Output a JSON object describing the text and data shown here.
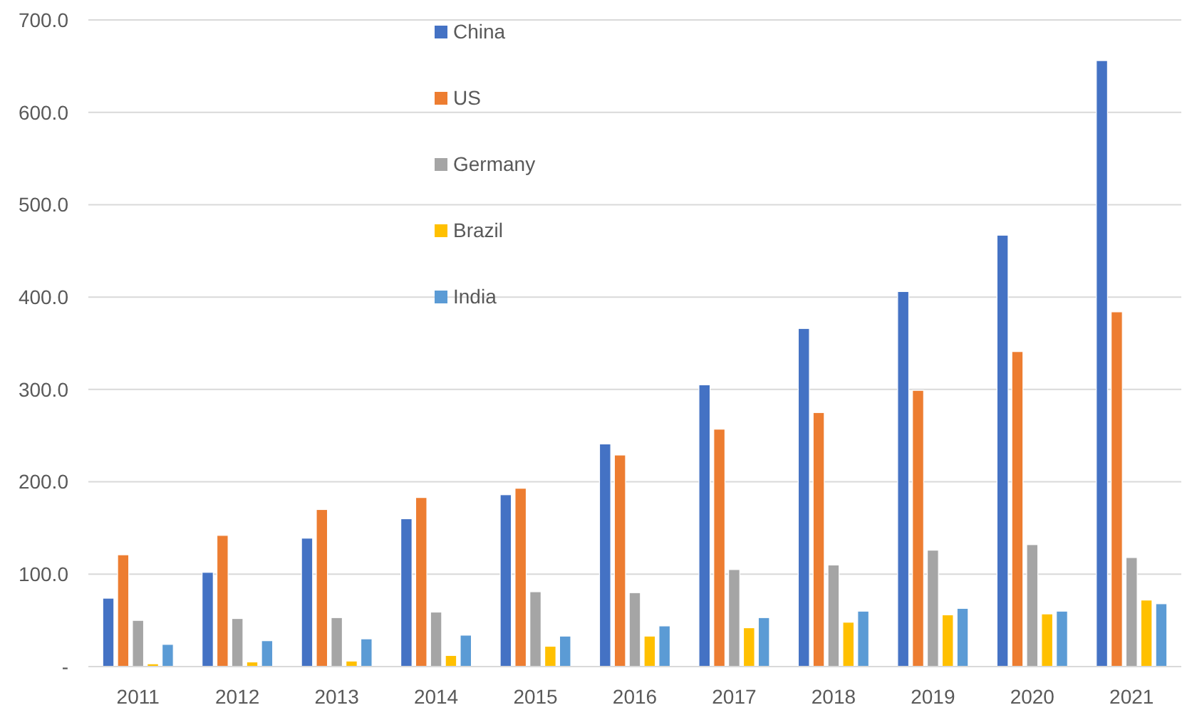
{
  "chart_data": {
    "type": "bar",
    "categories": [
      "2011",
      "2012",
      "2013",
      "2014",
      "2015",
      "2016",
      "2017",
      "2018",
      "2019",
      "2020",
      "2021"
    ],
    "series": [
      {
        "name": "China",
        "color": "#4472c4",
        "values": [
          74,
          102,
          139,
          160,
          186,
          241,
          305,
          366,
          406,
          467,
          656
        ]
      },
      {
        "name": "US",
        "color": "#ed7d31",
        "values": [
          121,
          142,
          170,
          183,
          193,
          229,
          257,
          275,
          299,
          341,
          384
        ]
      },
      {
        "name": "Germany",
        "color": "#a5a5a5",
        "values": [
          50,
          52,
          53,
          59,
          81,
          80,
          105,
          110,
          126,
          132,
          118
        ]
      },
      {
        "name": "Brazil",
        "color": "#ffc000",
        "values": [
          3,
          5,
          6,
          12,
          22,
          33,
          42,
          48,
          56,
          57,
          72
        ]
      },
      {
        "name": "India",
        "color": "#5b9bd5",
        "values": [
          24,
          28,
          30,
          34,
          33,
          44,
          53,
          60,
          63,
          60,
          68
        ]
      }
    ],
    "ylim": [
      0,
      700
    ],
    "yticks": [
      {
        "value": 0,
        "label": "-"
      },
      {
        "value": 100,
        "label": "100.0"
      },
      {
        "value": 200,
        "label": "200.0"
      },
      {
        "value": 300,
        "label": "300.0"
      },
      {
        "value": 400,
        "label": "400.0"
      },
      {
        "value": 500,
        "label": "500.0"
      },
      {
        "value": 600,
        "label": "600.0"
      },
      {
        "value": 700,
        "label": "700.0"
      }
    ],
    "grid": "y",
    "legend": "top"
  }
}
